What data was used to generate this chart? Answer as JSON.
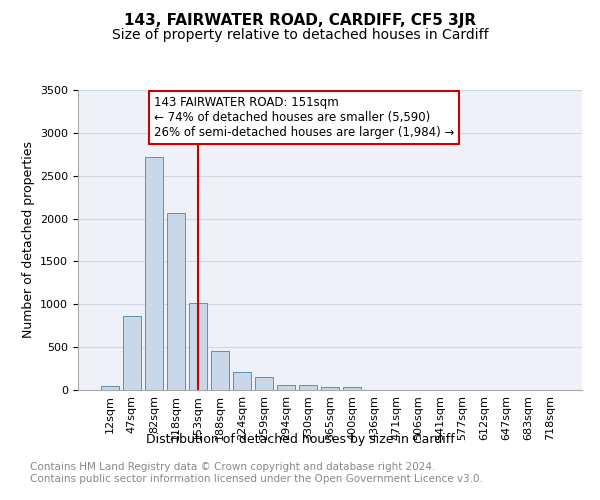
{
  "title": "143, FAIRWATER ROAD, CARDIFF, CF5 3JR",
  "subtitle": "Size of property relative to detached houses in Cardiff",
  "xlabel": "Distribution of detached houses by size in Cardiff",
  "ylabel": "Number of detached properties",
  "categories": [
    "12sqm",
    "47sqm",
    "82sqm",
    "118sqm",
    "153sqm",
    "188sqm",
    "224sqm",
    "259sqm",
    "294sqm",
    "330sqm",
    "365sqm",
    "400sqm",
    "436sqm",
    "471sqm",
    "506sqm",
    "541sqm",
    "577sqm",
    "612sqm",
    "647sqm",
    "683sqm",
    "718sqm"
  ],
  "bar_values": [
    50,
    860,
    2720,
    2070,
    1010,
    450,
    210,
    150,
    60,
    60,
    40,
    30,
    0,
    0,
    0,
    0,
    0,
    0,
    0,
    0,
    0
  ],
  "bar_color": "#c8d8e8",
  "bar_edgecolor": "#6090b0",
  "redline_index": 4,
  "annotation_text": "143 FAIRWATER ROAD: 151sqm\n← 74% of detached houses are smaller (5,590)\n26% of semi-detached houses are larger (1,984) →",
  "annotation_box_color": "#ffffff",
  "annotation_box_edgecolor": "#cc0000",
  "redline_color": "#cc0000",
  "ylim": [
    0,
    3500
  ],
  "yticks": [
    0,
    500,
    1000,
    1500,
    2000,
    2500,
    3000,
    3500
  ],
  "grid_color": "#d0d8e8",
  "bg_color": "#eef2f8",
  "footer_text": "Contains HM Land Registry data © Crown copyright and database right 2024.\nContains public sector information licensed under the Open Government Licence v3.0.",
  "title_fontsize": 11,
  "subtitle_fontsize": 10,
  "xlabel_fontsize": 9,
  "ylabel_fontsize": 9,
  "tick_fontsize": 8,
  "annotation_fontsize": 8.5,
  "footer_fontsize": 7.5
}
